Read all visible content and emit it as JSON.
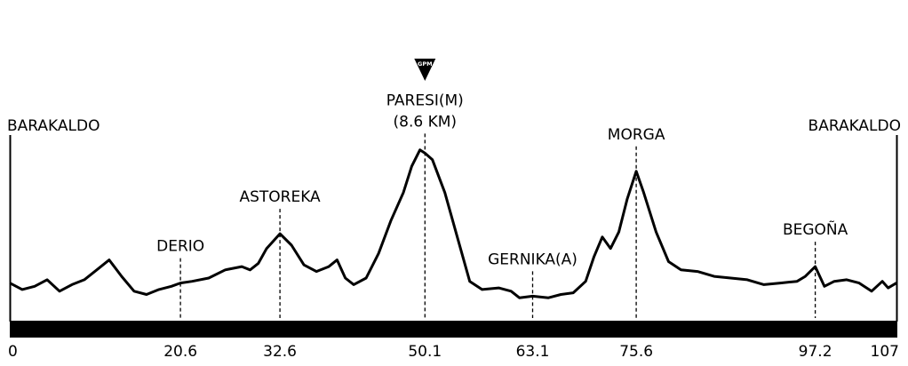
{
  "chart_data": {
    "type": "line",
    "title": "",
    "xlabel": "",
    "ylabel": "",
    "xlim": [
      0,
      107
    ],
    "x_ticks": [
      0,
      20.6,
      32.6,
      50.1,
      63.1,
      75.6,
      97.2,
      107
    ],
    "x_tick_labels": [
      "0",
      "20.6",
      "32.6",
      "50.1",
      "63.1",
      "75.6",
      "97.2",
      "107"
    ],
    "relative_altitude_range": [
      0,
      1
    ],
    "series": [
      {
        "values_note_none": "",
        "points": [
          [
            0,
            0.17
          ],
          [
            1.5,
            0.13
          ],
          [
            3,
            0.15
          ],
          [
            4.5,
            0.19
          ],
          [
            6,
            0.12
          ],
          [
            7.5,
            0.16
          ],
          [
            9,
            0.19
          ],
          [
            10.5,
            0.25
          ],
          [
            12,
            0.31
          ],
          [
            13.5,
            0.21
          ],
          [
            15,
            0.12
          ],
          [
            16.5,
            0.1
          ],
          [
            18,
            0.13
          ],
          [
            19.5,
            0.15
          ],
          [
            20.6,
            0.17
          ],
          [
            22,
            0.18
          ],
          [
            24,
            0.2
          ],
          [
            26,
            0.25
          ],
          [
            28,
            0.27
          ],
          [
            29,
            0.25
          ],
          [
            30,
            0.29
          ],
          [
            31,
            0.38
          ],
          [
            32.6,
            0.47
          ],
          [
            34,
            0.4
          ],
          [
            35.5,
            0.28
          ],
          [
            37,
            0.24
          ],
          [
            38.5,
            0.27
          ],
          [
            39.5,
            0.31
          ],
          [
            40.5,
            0.2
          ],
          [
            41.5,
            0.16
          ],
          [
            43,
            0.2
          ],
          [
            44.5,
            0.35
          ],
          [
            46,
            0.55
          ],
          [
            47.5,
            0.72
          ],
          [
            48.5,
            0.88
          ],
          [
            49.5,
            0.98
          ],
          [
            50.1,
            0.96
          ],
          [
            51,
            0.92
          ],
          [
            52.5,
            0.72
          ],
          [
            54,
            0.45
          ],
          [
            55.5,
            0.18
          ],
          [
            57,
            0.13
          ],
          [
            59,
            0.14
          ],
          [
            60.5,
            0.12
          ],
          [
            61.5,
            0.08
          ],
          [
            63.1,
            0.09
          ],
          [
            65,
            0.08
          ],
          [
            66.5,
            0.1
          ],
          [
            68,
            0.11
          ],
          [
            69.5,
            0.18
          ],
          [
            70.5,
            0.33
          ],
          [
            71.5,
            0.45
          ],
          [
            72.5,
            0.38
          ],
          [
            73.5,
            0.48
          ],
          [
            74.5,
            0.68
          ],
          [
            75.6,
            0.85
          ],
          [
            76.5,
            0.72
          ],
          [
            78,
            0.48
          ],
          [
            79.5,
            0.3
          ],
          [
            81,
            0.25
          ],
          [
            83,
            0.24
          ],
          [
            85,
            0.21
          ],
          [
            87,
            0.2
          ],
          [
            89,
            0.19
          ],
          [
            91,
            0.16
          ],
          [
            93,
            0.17
          ],
          [
            95,
            0.18
          ],
          [
            96,
            0.21
          ],
          [
            97.2,
            0.27
          ],
          [
            98.3,
            0.15
          ],
          [
            99.5,
            0.18
          ],
          [
            101,
            0.19
          ],
          [
            102.5,
            0.17
          ],
          [
            104,
            0.12
          ],
          [
            105.3,
            0.18
          ],
          [
            106,
            0.14
          ],
          [
            107,
            0.17
          ]
        ]
      }
    ],
    "places": [
      {
        "label": "BARAKALDO",
        "km": 0,
        "lines": [
          "BARAKALDO"
        ]
      },
      {
        "label": "DERIO",
        "km": 20.6,
        "lines": [
          "DERIO"
        ]
      },
      {
        "label": "ASTOREKA",
        "km": 32.6,
        "lines": [
          "ASTOREKA"
        ]
      },
      {
        "label": "PARESI(M)",
        "km": 50.1,
        "lines": [
          "PARESI(M)",
          "(8.6 KM)"
        ]
      },
      {
        "label": "GERNIKA(A)",
        "km": 63.1,
        "lines": [
          "GERNIKA(A)"
        ]
      },
      {
        "label": "MORGA",
        "km": 75.6,
        "lines": [
          "MORGA"
        ]
      },
      {
        "label": "BEGOÑA",
        "km": 97.2,
        "lines": [
          "BEGOÑA"
        ]
      },
      {
        "label": "BARAKALDO",
        "km": 107,
        "lines": [
          "BARAKALDO"
        ]
      }
    ],
    "summit_badge": {
      "text": "GPM",
      "km": 50.1
    },
    "grid": false,
    "legend": "none",
    "colors": {
      "line": "#000000",
      "baseline_bar": "#000000",
      "background": "#ffffff"
    }
  }
}
